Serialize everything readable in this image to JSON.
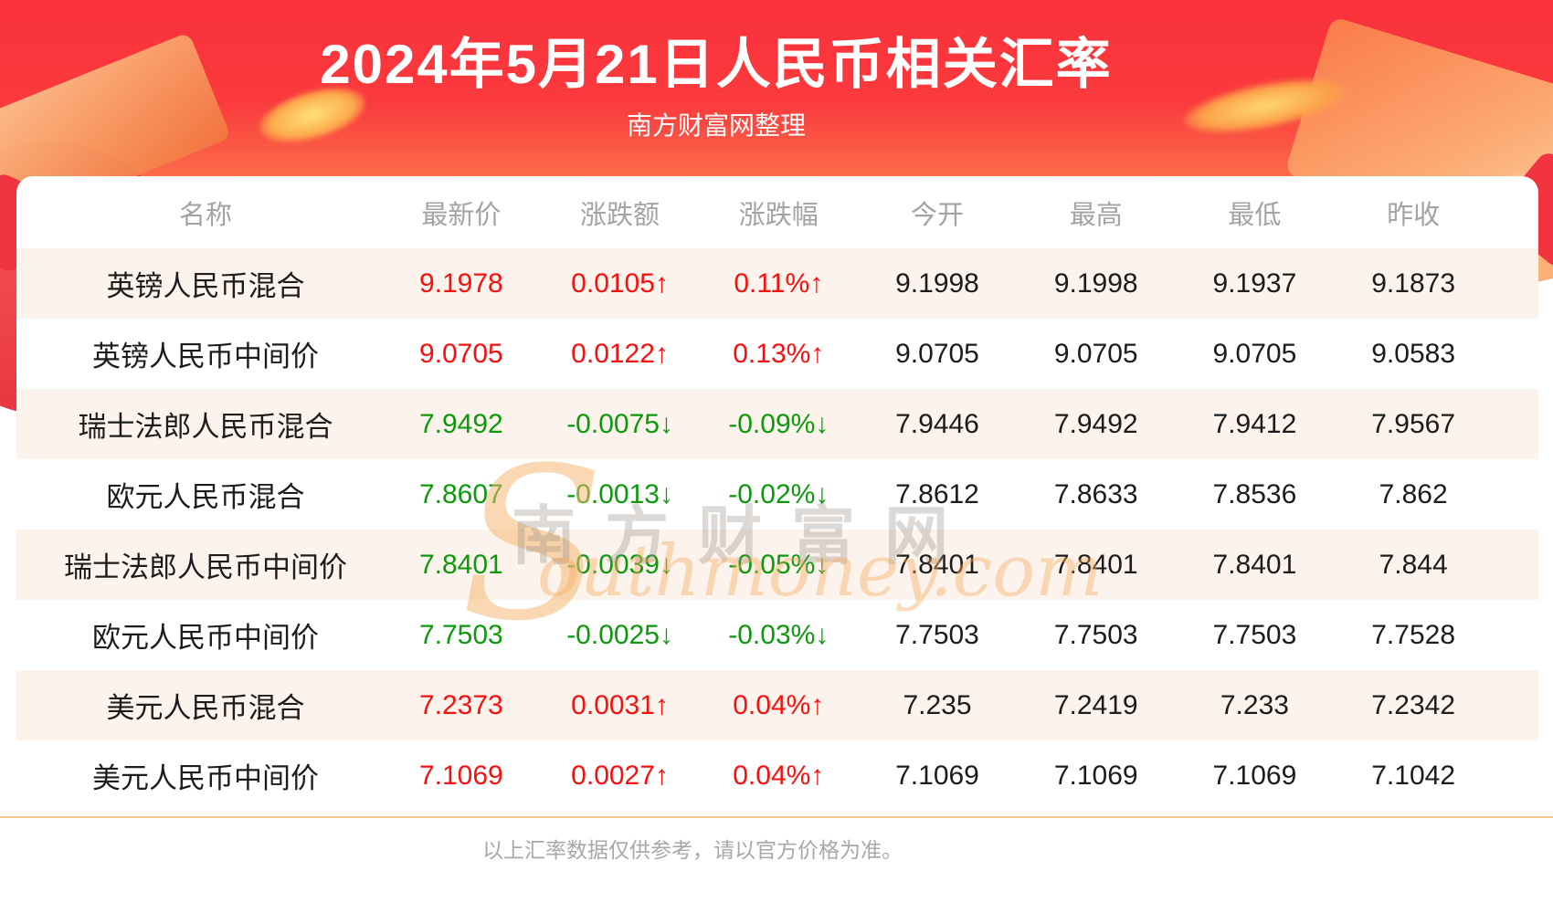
{
  "page": {
    "title": "2024年5月21日人民币相关汇率",
    "subtitle": "南方财富网整理",
    "footer_note": "以上汇率数据仅供参考，请以官方价格为准。"
  },
  "watermark": {
    "cn": "南方财富网",
    "en_initial": "S",
    "en_rest": "outhmoney.com"
  },
  "arrows": {
    "up": "↑",
    "down": "↓"
  },
  "colors": {
    "banner_red": "#f9313b",
    "banner_orange": "#fca468",
    "up_red": "#f6100e",
    "down_green": "#0c9a0c",
    "row_alt_pink": "#fcf3ec",
    "header_gray": "#a3a3a3",
    "divider_tan": "#f5c78f"
  },
  "table": {
    "columns": [
      {
        "key": "name",
        "label": "名称"
      },
      {
        "key": "last",
        "label": "最新价"
      },
      {
        "key": "change",
        "label": "涨跌额"
      },
      {
        "key": "change_pct",
        "label": "涨跌幅"
      },
      {
        "key": "open",
        "label": "今开"
      },
      {
        "key": "high",
        "label": "最高"
      },
      {
        "key": "low",
        "label": "最低"
      },
      {
        "key": "prev_close",
        "label": "昨收"
      }
    ],
    "rows": [
      {
        "name": "英镑人民币混合",
        "last": "9.1978",
        "change": "0.0105",
        "change_pct": "0.11%",
        "open": "9.1998",
        "high": "9.1998",
        "low": "9.1937",
        "prev_close": "9.1873",
        "trend": "up"
      },
      {
        "name": "英镑人民币中间价",
        "last": "9.0705",
        "change": "0.0122",
        "change_pct": "0.13%",
        "open": "9.0705",
        "high": "9.0705",
        "low": "9.0705",
        "prev_close": "9.0583",
        "trend": "up"
      },
      {
        "name": "瑞士法郎人民币混合",
        "last": "7.9492",
        "change": "-0.0075",
        "change_pct": "-0.09%",
        "open": "7.9446",
        "high": "7.9492",
        "low": "7.9412",
        "prev_close": "7.9567",
        "trend": "down"
      },
      {
        "name": "欧元人民币混合",
        "last": "7.8607",
        "change": "-0.0013",
        "change_pct": "-0.02%",
        "open": "7.8612",
        "high": "7.8633",
        "low": "7.8536",
        "prev_close": "7.862",
        "trend": "down"
      },
      {
        "name": "瑞士法郎人民币中间价",
        "last": "7.8401",
        "change": "-0.0039",
        "change_pct": "-0.05%",
        "open": "7.8401",
        "high": "7.8401",
        "low": "7.8401",
        "prev_close": "7.844",
        "trend": "down"
      },
      {
        "name": "欧元人民币中间价",
        "last": "7.7503",
        "change": "-0.0025",
        "change_pct": "-0.03%",
        "open": "7.7503",
        "high": "7.7503",
        "low": "7.7503",
        "prev_close": "7.7528",
        "trend": "down"
      },
      {
        "name": "美元人民币混合",
        "last": "7.2373",
        "change": "0.0031",
        "change_pct": "0.04%",
        "open": "7.235",
        "high": "7.2419",
        "low": "7.233",
        "prev_close": "7.2342",
        "trend": "up"
      },
      {
        "name": "美元人民币中间价",
        "last": "7.1069",
        "change": "0.0027",
        "change_pct": "0.04%",
        "open": "7.1069",
        "high": "7.1069",
        "low": "7.1069",
        "prev_close": "7.1042",
        "trend": "up"
      }
    ]
  },
  "chart_data": {
    "type": "table",
    "title": "2024年5月21日人民币相关汇率",
    "columns": [
      "名称",
      "最新价",
      "涨跌额",
      "涨跌幅",
      "今开",
      "最高",
      "最低",
      "昨收"
    ],
    "rows": [
      [
        "英镑人民币混合",
        "9.1978",
        "0.0105↑",
        "0.11%↑",
        "9.1998",
        "9.1998",
        "9.1937",
        "9.1873"
      ],
      [
        "英镑人民币中间价",
        "9.0705",
        "0.0122↑",
        "0.13%↑",
        "9.0705",
        "9.0705",
        "9.0705",
        "9.0583"
      ],
      [
        "瑞士法郎人民币混合",
        "7.9492",
        "-0.0075↓",
        "-0.09%↓",
        "7.9446",
        "7.9492",
        "7.9412",
        "7.9567"
      ],
      [
        "欧元人民币混合",
        "7.8607",
        "-0.0013↓",
        "-0.02%↓",
        "7.8612",
        "7.8633",
        "7.8536",
        "7.862"
      ],
      [
        "瑞士法郎人民币中间价",
        "7.8401",
        "-0.0039↓",
        "-0.05%↓",
        "7.8401",
        "7.8401",
        "7.8401",
        "7.844"
      ],
      [
        "欧元人民币中间价",
        "7.7503",
        "-0.0025↓",
        "-0.03%↓",
        "7.7503",
        "7.7503",
        "7.7503",
        "7.7528"
      ],
      [
        "美元人民币混合",
        "7.2373",
        "0.0031↑",
        "0.04%↑",
        "7.235",
        "7.2419",
        "7.233",
        "7.2342"
      ],
      [
        "美元人民币中间价",
        "7.1069",
        "0.0027↑",
        "0.04%↑",
        "7.1069",
        "7.1069",
        "7.1069",
        "7.1042"
      ]
    ]
  }
}
